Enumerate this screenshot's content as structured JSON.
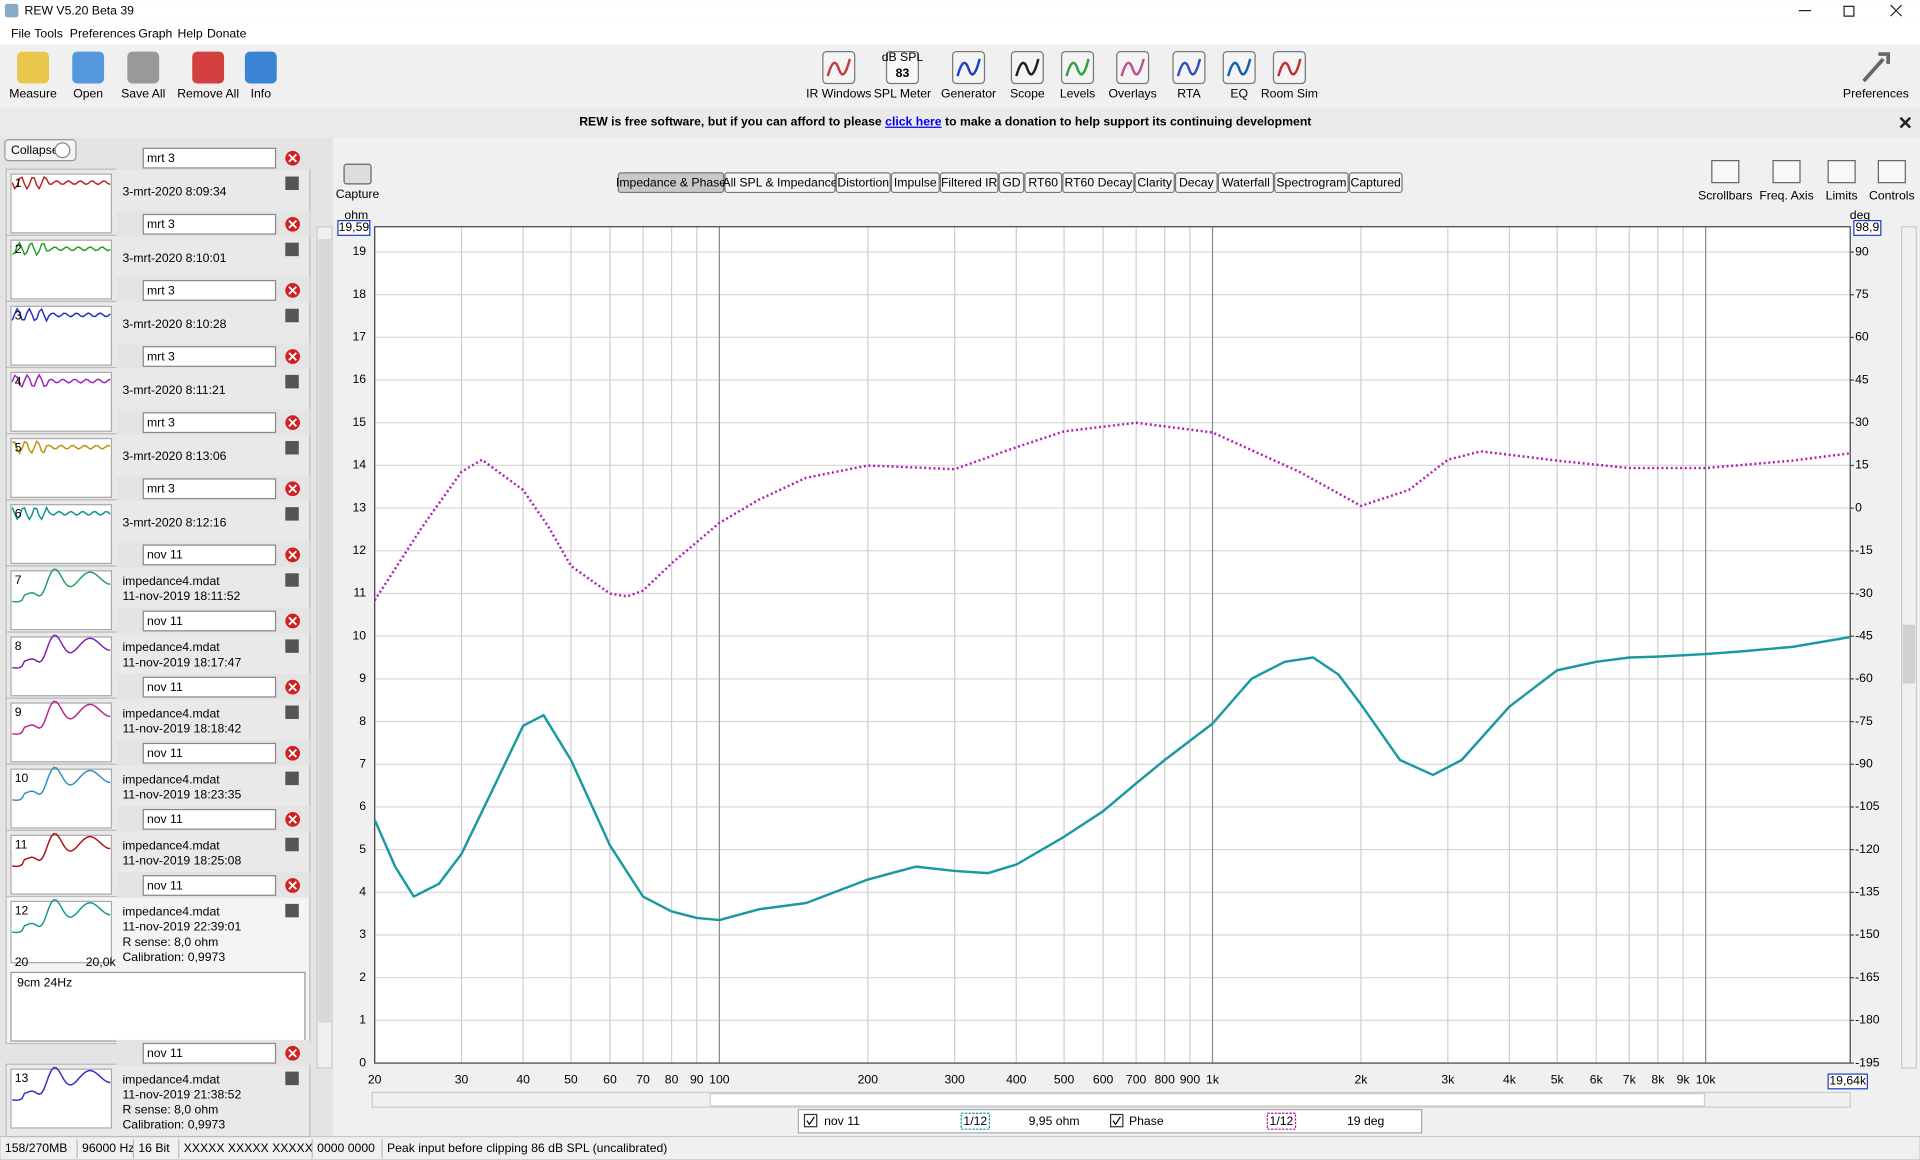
{
  "window": {
    "title": "REW V5.20 Beta 39"
  },
  "menu": [
    "File",
    "Tools",
    "Preferences",
    "Graph",
    "Help",
    "Donate"
  ],
  "toolbar_left": [
    "Measure",
    "Open",
    "Save All",
    "Remove All",
    "Info"
  ],
  "toolbar_center": [
    "IR Windows",
    "SPL Meter",
    "Generator",
    "Scope",
    "Levels",
    "Overlays",
    "RTA",
    "EQ",
    "Room Sim"
  ],
  "spl_icon": {
    "unit": "dB SPL",
    "value": "83"
  },
  "toolbar_right": [
    "Preferences"
  ],
  "banner": {
    "before": "REW is free software, but if you can afford to please",
    "link": "click here",
    "after": "to make a donation to help support its continuing development"
  },
  "panel": {
    "collapse": "Collapse",
    "measurements": [
      {
        "name": "mrt 3",
        "number": "1",
        "lines": [
          "3-mrt-2020 8:09:34"
        ]
      },
      {
        "name": "mrt 3",
        "number": "2",
        "lines": [
          "3-mrt-2020 8:10:01"
        ]
      },
      {
        "name": "mrt 3",
        "number": "3",
        "lines": [
          "3-mrt-2020 8:10:28"
        ]
      },
      {
        "name": "mrt 3",
        "number": "4",
        "lines": [
          "3-mrt-2020 8:11:21"
        ]
      },
      {
        "name": "mrt 3",
        "number": "5",
        "lines": [
          "3-mrt-2020 8:13:06"
        ]
      },
      {
        "name": "mrt 3",
        "number": "6",
        "lines": [
          "3-mrt-2020 8:12:16"
        ]
      },
      {
        "name": "nov 11",
        "number": "7",
        "lines": [
          "impedance4.mdat",
          "11-nov-2019 18:11:52"
        ]
      },
      {
        "name": "nov 11",
        "number": "8",
        "lines": [
          "impedance4.mdat",
          "11-nov-2019 18:17:47"
        ]
      },
      {
        "name": "nov 11",
        "number": "9",
        "lines": [
          "impedance4.mdat",
          "11-nov-2019 18:18:42"
        ]
      },
      {
        "name": "nov 11",
        "number": "10",
        "lines": [
          "impedance4.mdat",
          "11-nov-2019 18:23:35"
        ]
      },
      {
        "name": "nov 11",
        "number": "11",
        "lines": [
          "impedance4.mdat",
          "11-nov-2019 18:25:08"
        ]
      },
      {
        "name": "nov 11",
        "number": "12",
        "lines": [
          "impedance4.mdat",
          "11-nov-2019 22:39:01",
          "R sense: 8,0 ohm",
          "Calibration: 0,9973"
        ],
        "thumb_axis": [
          "20",
          "20,0k"
        ],
        "notes": "9cm 24Hz"
      },
      {
        "name": "nov 11",
        "number": "13",
        "lines": [
          "impedance4.mdat",
          "11-nov-2019 21:38:52",
          "R sense: 8,0 ohm",
          "Calibration: 0,9973"
        ]
      }
    ]
  },
  "graph_tabs": [
    "Impedance & Phase",
    "All SPL & Impedance",
    "Distortion",
    "Impulse",
    "Filtered IR",
    "GD",
    "RT60",
    "RT60 Decay",
    "Clarity",
    "Decay",
    "Waterfall",
    "Spectrogram",
    "Captured"
  ],
  "capture": "Capture",
  "graph_controls": [
    "Scrollbars",
    "Freq. Axis",
    "Limits",
    "Controls"
  ],
  "chart_data": {
    "type": "line",
    "x_log": true,
    "grid": true,
    "y_label": "ohm",
    "y2_label": "deg",
    "xlim": [
      20,
      19640
    ],
    "x_max_label": "19,64k",
    "ylim": [
      0,
      19.59
    ],
    "y_max_label": "19,59",
    "y2lim": [
      -195,
      98.9
    ],
    "y2_max_label": "98,9",
    "xticks": [
      20,
      30,
      40,
      50,
      60,
      70,
      80,
      90,
      100,
      200,
      300,
      400,
      500,
      600,
      700,
      800,
      900,
      {
        "value": 1000,
        "label": "1k"
      },
      {
        "value": 2000,
        "label": "2k"
      },
      {
        "value": 3000,
        "label": "3k"
      },
      {
        "value": 4000,
        "label": "4k"
      },
      {
        "value": 5000,
        "label": "5k"
      },
      {
        "value": 6000,
        "label": "6k"
      },
      {
        "value": 7000,
        "label": "7k"
      },
      {
        "value": 8000,
        "label": "8k"
      },
      {
        "value": 9000,
        "label": "9k"
      },
      {
        "value": 10000,
        "label": "10k"
      }
    ],
    "yticks": [
      0,
      1,
      2,
      3,
      4,
      5,
      6,
      7,
      8,
      9,
      10,
      11,
      12,
      13,
      14,
      15,
      16,
      17,
      18,
      19
    ],
    "y2ticks": [
      -195,
      -180,
      -165,
      -150,
      -135,
      -120,
      -105,
      -90,
      -75,
      -60,
      -45,
      -30,
      -15,
      0,
      15,
      30,
      45,
      60,
      75,
      90
    ],
    "series": [
      {
        "name": "nov 11",
        "color": "#1a9aa0",
        "smoothing": "1/12",
        "cursor_value": "9,95 ohm",
        "x": [
          20,
          22,
          24,
          27,
          30,
          35,
          40,
          44,
          50,
          60,
          70,
          80,
          90,
          100,
          120,
          150,
          200,
          250,
          300,
          350,
          400,
          500,
          600,
          700,
          800,
          1000,
          1200,
          1400,
          1600,
          1800,
          2000,
          2400,
          2800,
          3200,
          4000,
          5000,
          6000,
          7000,
          8000,
          10000,
          12000,
          15000,
          19640
        ],
        "values": [
          5.7,
          4.6,
          3.9,
          4.2,
          4.9,
          6.5,
          7.9,
          8.15,
          7.1,
          5.1,
          3.9,
          3.55,
          3.4,
          3.35,
          3.6,
          3.75,
          4.3,
          4.6,
          4.5,
          4.45,
          4.65,
          5.3,
          5.9,
          6.55,
          7.1,
          7.95,
          9.0,
          9.4,
          9.5,
          9.1,
          8.4,
          7.1,
          6.75,
          7.1,
          8.35,
          9.2,
          9.4,
          9.5,
          9.52,
          9.58,
          9.65,
          9.75,
          9.98
        ]
      },
      {
        "name": "Phase",
        "color": "#b418b4",
        "axis": "y2",
        "smoothing": "1/12",
        "cursor_value": "19 deg",
        "x": [
          20,
          25,
          30,
          33,
          40,
          45,
          50,
          60,
          65,
          70,
          80,
          100,
          120,
          150,
          200,
          300,
          400,
          500,
          700,
          1000,
          1500,
          2000,
          2500,
          3000,
          3500,
          5000,
          7000,
          10000,
          15000,
          19640
        ],
        "values": [
          -32.4,
          -6.5,
          12.8,
          17,
          6.4,
          -6.5,
          -20.3,
          -30,
          -31,
          -29,
          -19.4,
          -5.2,
          2.9,
          10.7,
          15,
          13.7,
          21.4,
          27,
          30,
          26.6,
          12.8,
          0.8,
          6.4,
          17,
          20,
          16.7,
          14.1,
          14.1,
          16.7,
          19.3
        ]
      }
    ]
  },
  "status": [
    "158/270MB",
    "96000 Hz",
    "16 Bit",
    "XXXXX XXXXX XXXXX",
    "0000 0000",
    "Peak input before clipping 86 dB SPL (uncalibrated)"
  ]
}
